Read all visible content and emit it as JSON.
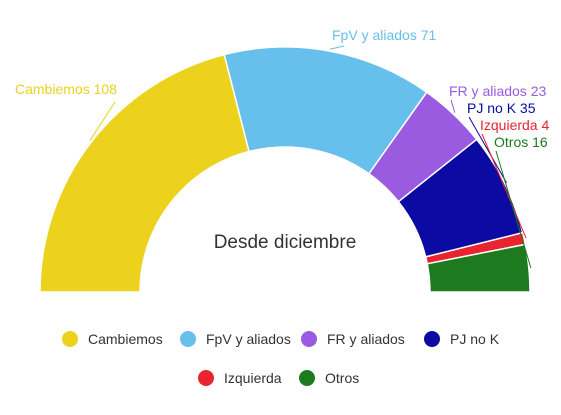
{
  "chart_data": {
    "type": "pie",
    "subtype": "semicircle-donut",
    "center_label": "Desde diciembre",
    "legend_placement": "bottom",
    "series": [
      {
        "name": "Cambiemos",
        "value": 108,
        "label": "Cambiemos 108",
        "color": "#ecd21c"
      },
      {
        "name": "FpV y aliados",
        "value": 71,
        "label": "FpV y aliados 71",
        "color": "#67bfeb"
      },
      {
        "name": "FR y aliados",
        "value": 23,
        "label": "FR y aliados 23",
        "color": "#9a5be0"
      },
      {
        "name": "PJ no K",
        "value": 35,
        "label": "PJ no K 35",
        "color": "#0b0aa3"
      },
      {
        "name": "Izquierda",
        "value": 4,
        "label": "Izquierda 4",
        "color": "#e8242f"
      },
      {
        "name": "Otros",
        "value": 16,
        "label": "Otros 16",
        "color": "#1e7a1f"
      }
    ]
  }
}
